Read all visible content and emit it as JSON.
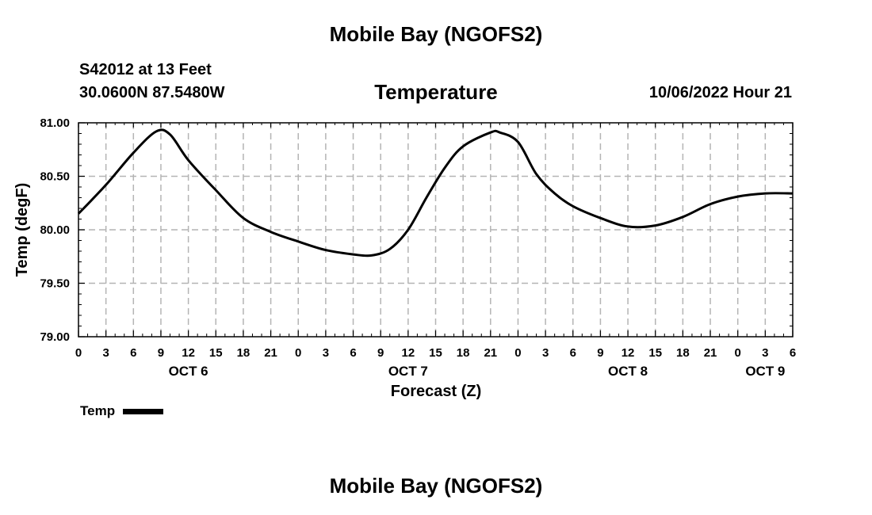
{
  "page": {
    "top_title": "Mobile Bay (NGOFS2)",
    "station": "S42012 at 13 Feet",
    "coords": "30.0600N  87.5480W",
    "timestamp": "10/06/2022 Hour 21",
    "bottom_title": "Mobile Bay (NGOFS2)"
  },
  "chart_data": {
    "type": "line",
    "title": "Temperature",
    "xlabel": "Forecast (Z)",
    "ylabel": "Temp (degF)",
    "ylim": [
      79.0,
      81.0
    ],
    "yticks": [
      "79.00",
      "79.50",
      "80.00",
      "80.50",
      "81.00"
    ],
    "xlim": [
      0,
      78
    ],
    "xticks": [
      "0",
      "3",
      "6",
      "9",
      "12",
      "15",
      "18",
      "21",
      "0",
      "3",
      "6",
      "9",
      "12",
      "15",
      "18",
      "21",
      "0",
      "3",
      "6",
      "9",
      "12",
      "15",
      "18",
      "21",
      "0",
      "3",
      "6"
    ],
    "day_labels": [
      "OCT 6",
      "OCT 7",
      "OCT 8",
      "OCT 9"
    ],
    "grid": true,
    "legend_position": "bottom-left",
    "series": [
      {
        "name": "Temp",
        "color": "#000000",
        "x": [
          0,
          3,
          6,
          8.5,
          10,
          12,
          15,
          18,
          21,
          24,
          27,
          30,
          32,
          34,
          36,
          38,
          40,
          42,
          45,
          46,
          48,
          50,
          52,
          54,
          57,
          60,
          63,
          66,
          69,
          72,
          75,
          78
        ],
        "values": [
          80.15,
          80.42,
          80.72,
          80.92,
          80.89,
          80.65,
          80.37,
          80.11,
          79.98,
          79.89,
          79.81,
          79.77,
          79.76,
          79.82,
          80.0,
          80.3,
          80.58,
          80.78,
          80.91,
          80.91,
          80.82,
          80.52,
          80.34,
          80.22,
          80.11,
          80.03,
          80.04,
          80.12,
          80.24,
          80.31,
          80.34,
          80.34
        ]
      }
    ]
  }
}
